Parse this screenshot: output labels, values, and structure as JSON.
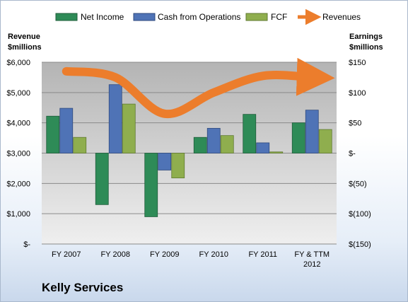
{
  "company": "Kelly Services",
  "chart_data": {
    "type": "bar",
    "categories": [
      "FY 2007",
      "FY 2008",
      "FY 2009",
      "FY 2010",
      "FY 2011",
      "FY & TTM 2012"
    ],
    "legend_position": "top",
    "grid": true,
    "series": [
      {
        "name": "Net Income",
        "axis": "right",
        "type": "bar",
        "color": "#2e8b57",
        "values": [
          61,
          -85,
          -105,
          26,
          64,
          50
        ]
      },
      {
        "name": "Cash from Operations",
        "axis": "right",
        "type": "bar",
        "color": "#4f73b6",
        "values": [
          74,
          113,
          -28,
          41,
          17,
          71
        ]
      },
      {
        "name": "FCF",
        "axis": "right",
        "type": "bar",
        "color": "#8fae4e",
        "values": [
          26,
          81,
          -41,
          29,
          2,
          39
        ]
      },
      {
        "name": "Revenues",
        "axis": "left",
        "type": "line",
        "color": "#ec7d2c",
        "values": [
          5700,
          5500,
          4300,
          5000,
          5550,
          5500
        ]
      }
    ],
    "left_axis": {
      "label_line1": "Revenue",
      "label_line2": "$millions",
      "ylim": [
        0,
        6000
      ],
      "ticks": [
        {
          "value": 0,
          "label": "$-"
        },
        {
          "value": 1000,
          "label": "$1,000"
        },
        {
          "value": 2000,
          "label": "$2,000"
        },
        {
          "value": 3000,
          "label": "$3,000"
        },
        {
          "value": 4000,
          "label": "$4,000"
        },
        {
          "value": 5000,
          "label": "$5,000"
        },
        {
          "value": 6000,
          "label": "$6,000"
        }
      ]
    },
    "right_axis": {
      "label_line1": "Earnings",
      "label_line2": "$millions",
      "ylim": [
        -150,
        150
      ],
      "ticks": [
        {
          "value": -150,
          "label": "$(150)"
        },
        {
          "value": -100,
          "label": "$(100)"
        },
        {
          "value": -50,
          "label": "$(50)"
        },
        {
          "value": 0,
          "label": "$-"
        },
        {
          "value": 50,
          "label": "$50"
        },
        {
          "value": 100,
          "label": "$100"
        },
        {
          "value": 150,
          "label": "$150"
        }
      ]
    }
  }
}
